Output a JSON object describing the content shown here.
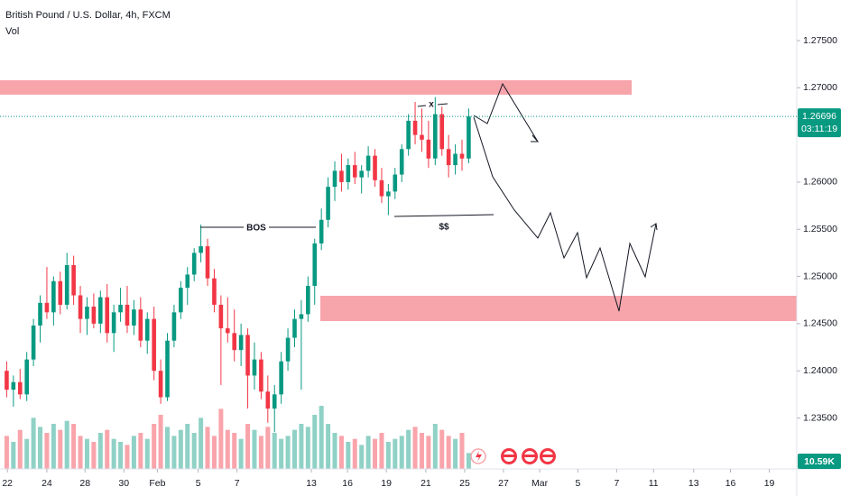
{
  "chart_data": {
    "type": "candlestick",
    "title": "British Pound / U.S. Dollar, 4h, FXCM",
    "subtitle": "Vol",
    "x": [
      0,
      1,
      2,
      3,
      4,
      5,
      6,
      7,
      8,
      9,
      10,
      11,
      12,
      13,
      14,
      15,
      16,
      17,
      18,
      19,
      20,
      21,
      22,
      23,
      24,
      25,
      26,
      27,
      28,
      29,
      30,
      31,
      32,
      33,
      34,
      35,
      36,
      37,
      38,
      39,
      40,
      41,
      42,
      43,
      44,
      45,
      46,
      47,
      48,
      49,
      50,
      51,
      52,
      53,
      54,
      55,
      56,
      57,
      58,
      59,
      60,
      61,
      62,
      63,
      64,
      65,
      66,
      67,
      68,
      69
    ],
    "open": [
      1.24,
      1.238,
      1.2388,
      1.2375,
      1.2412,
      1.2448,
      1.2472,
      1.2462,
      1.2495,
      1.247,
      1.2512,
      1.248,
      1.2455,
      1.2468,
      1.245,
      1.2478,
      1.244,
      1.2462,
      1.247,
      1.2448,
      1.2465,
      1.2432,
      1.2455,
      1.24,
      1.2372,
      1.2432,
      1.2462,
      1.2488,
      1.2502,
      1.2525,
      1.2532,
      1.2498,
      1.247,
      1.2445,
      1.244,
      1.2422,
      1.2438,
      1.2395,
      1.2412,
      1.2378,
      1.236,
      1.2375,
      1.241,
      1.2435,
      1.2455,
      1.246,
      1.249,
      1.2535,
      1.256,
      1.2595,
      1.2612,
      1.26,
      1.2618,
      1.2605,
      1.2612,
      1.2628,
      1.2602,
      1.2585,
      1.259,
      1.2608,
      1.2635,
      1.2665,
      1.265,
      1.2645,
      1.2625,
      1.2672,
      1.2635,
      1.2618,
      1.263,
      1.2625
    ],
    "high": [
      1.241,
      1.2395,
      1.2402,
      1.242,
      1.2455,
      1.248,
      1.251,
      1.25,
      1.2505,
      1.2525,
      1.2522,
      1.249,
      1.2478,
      1.2482,
      1.2485,
      1.2492,
      1.247,
      1.2488,
      1.249,
      1.2475,
      1.2478,
      1.2462,
      1.2468,
      1.2412,
      1.244,
      1.247,
      1.2495,
      1.251,
      1.253,
      1.2555,
      1.254,
      1.2508,
      1.248,
      1.2478,
      1.2465,
      1.245,
      1.2445,
      1.243,
      1.242,
      1.2395,
      1.2385,
      1.242,
      1.2445,
      1.2465,
      1.2475,
      1.25,
      1.254,
      1.2572,
      1.2605,
      1.2622,
      1.263,
      1.2625,
      1.2632,
      1.2618,
      1.2638,
      1.2635,
      1.2615,
      1.2598,
      1.2615,
      1.264,
      1.2672,
      1.2685,
      1.2678,
      1.2665,
      1.269,
      1.268,
      1.265,
      1.264,
      1.2645,
      1.2678
    ],
    "low": [
      1.2372,
      1.2362,
      1.237,
      1.2368,
      1.2405,
      1.243,
      1.2455,
      1.2448,
      1.246,
      1.2465,
      1.247,
      1.244,
      1.2438,
      1.2445,
      1.244,
      1.243,
      1.242,
      1.2452,
      1.244,
      1.2438,
      1.2425,
      1.2418,
      1.239,
      1.2365,
      1.2368,
      1.2425,
      1.2455,
      1.247,
      1.2495,
      1.2515,
      1.249,
      1.2462,
      1.2385,
      1.243,
      1.241,
      1.2405,
      1.236,
      1.238,
      1.237,
      1.2345,
      1.2335,
      1.2365,
      1.24,
      1.2425,
      1.238,
      1.2452,
      1.247,
      1.2528,
      1.2552,
      1.258,
      1.259,
      1.2592,
      1.2598,
      1.2588,
      1.2605,
      1.2595,
      1.2578,
      1.2565,
      1.2582,
      1.26,
      1.2628,
      1.264,
      1.2632,
      1.2615,
      1.2618,
      1.2628,
      1.2605,
      1.2608,
      1.2612,
      1.262
    ],
    "close": [
      1.238,
      1.2388,
      1.2375,
      1.2412,
      1.2448,
      1.2472,
      1.2462,
      1.2495,
      1.247,
      1.2512,
      1.248,
      1.2455,
      1.2468,
      1.245,
      1.2478,
      1.244,
      1.2462,
      1.247,
      1.2448,
      1.2465,
      1.2432,
      1.2455,
      1.24,
      1.2372,
      1.2432,
      1.2462,
      1.2488,
      1.2502,
      1.2525,
      1.2532,
      1.2498,
      1.247,
      1.2445,
      1.244,
      1.2422,
      1.2438,
      1.2395,
      1.2412,
      1.2378,
      1.236,
      1.2375,
      1.241,
      1.2435,
      1.2455,
      1.246,
      1.249,
      1.2535,
      1.256,
      1.2595,
      1.2612,
      1.26,
      1.2618,
      1.2605,
      1.2612,
      1.2628,
      1.2602,
      1.2585,
      1.259,
      1.2608,
      1.2635,
      1.2665,
      1.265,
      1.2645,
      1.2625,
      1.2672,
      1.2635,
      1.2618,
      1.263,
      1.2625,
      1.26696
    ],
    "volume": [
      22,
      18,
      26,
      20,
      34,
      28,
      24,
      30,
      26,
      32,
      30,
      22,
      20,
      18,
      24,
      26,
      20,
      18,
      16,
      22,
      24,
      20,
      30,
      36,
      28,
      22,
      26,
      30,
      24,
      34,
      28,
      22,
      40,
      26,
      24,
      20,
      30,
      26,
      22,
      28,
      24,
      20,
      22,
      26,
      30,
      28,
      36,
      42,
      30,
      24,
      22,
      18,
      20,
      16,
      22,
      20,
      24,
      18,
      20,
      22,
      26,
      28,
      24,
      22,
      30,
      26,
      22,
      20,
      24,
      10.59
    ],
    "up_color": "#089981",
    "down_color": "#f23645",
    "xlim": [
      -1,
      118
    ],
    "xticks": [
      {
        "value": 0.1,
        "label": "22"
      },
      {
        "value": 6.0,
        "label": "24"
      },
      {
        "value": 11.7,
        "label": "28"
      },
      {
        "value": 17.5,
        "label": "30"
      },
      {
        "value": 22.5,
        "label": "Feb"
      },
      {
        "value": 28.6,
        "label": "5"
      },
      {
        "value": 34.4,
        "label": "7"
      },
      {
        "value": 45.5,
        "label": "13"
      },
      {
        "value": 50.9,
        "label": "16"
      },
      {
        "value": 56.7,
        "label": "19"
      },
      {
        "value": 62.6,
        "label": "21"
      },
      {
        "value": 68.4,
        "label": "25"
      },
      {
        "value": 74.2,
        "label": "27"
      },
      {
        "value": 79.6,
        "label": "Mar"
      },
      {
        "value": 85.3,
        "label": "5"
      },
      {
        "value": 91.1,
        "label": "7"
      },
      {
        "value": 96.6,
        "label": "11"
      },
      {
        "value": 102.6,
        "label": "13"
      },
      {
        "value": 108.1,
        "label": "16"
      },
      {
        "value": 113.9,
        "label": "19"
      }
    ],
    "ylim": [
      1.2296,
      1.2793
    ],
    "yticks": [
      {
        "value": 1.275,
        "label": "1.27500"
      },
      {
        "value": 1.27,
        "label": "1.27000"
      },
      {
        "value": 1.26,
        "label": "1.26000"
      },
      {
        "value": 1.255,
        "label": "1.25500"
      },
      {
        "value": 1.25,
        "label": "1.25000"
      },
      {
        "value": 1.245,
        "label": "1.24500"
      },
      {
        "value": 1.24,
        "label": "1.24000"
      },
      {
        "value": 1.235,
        "label": "1.23500"
      }
    ],
    "last_price": 1.26696,
    "countdown": "03:11:19",
    "volume_value_label": "10.59K",
    "annotations": [
      "BOS",
      "$$",
      "x"
    ]
  }
}
